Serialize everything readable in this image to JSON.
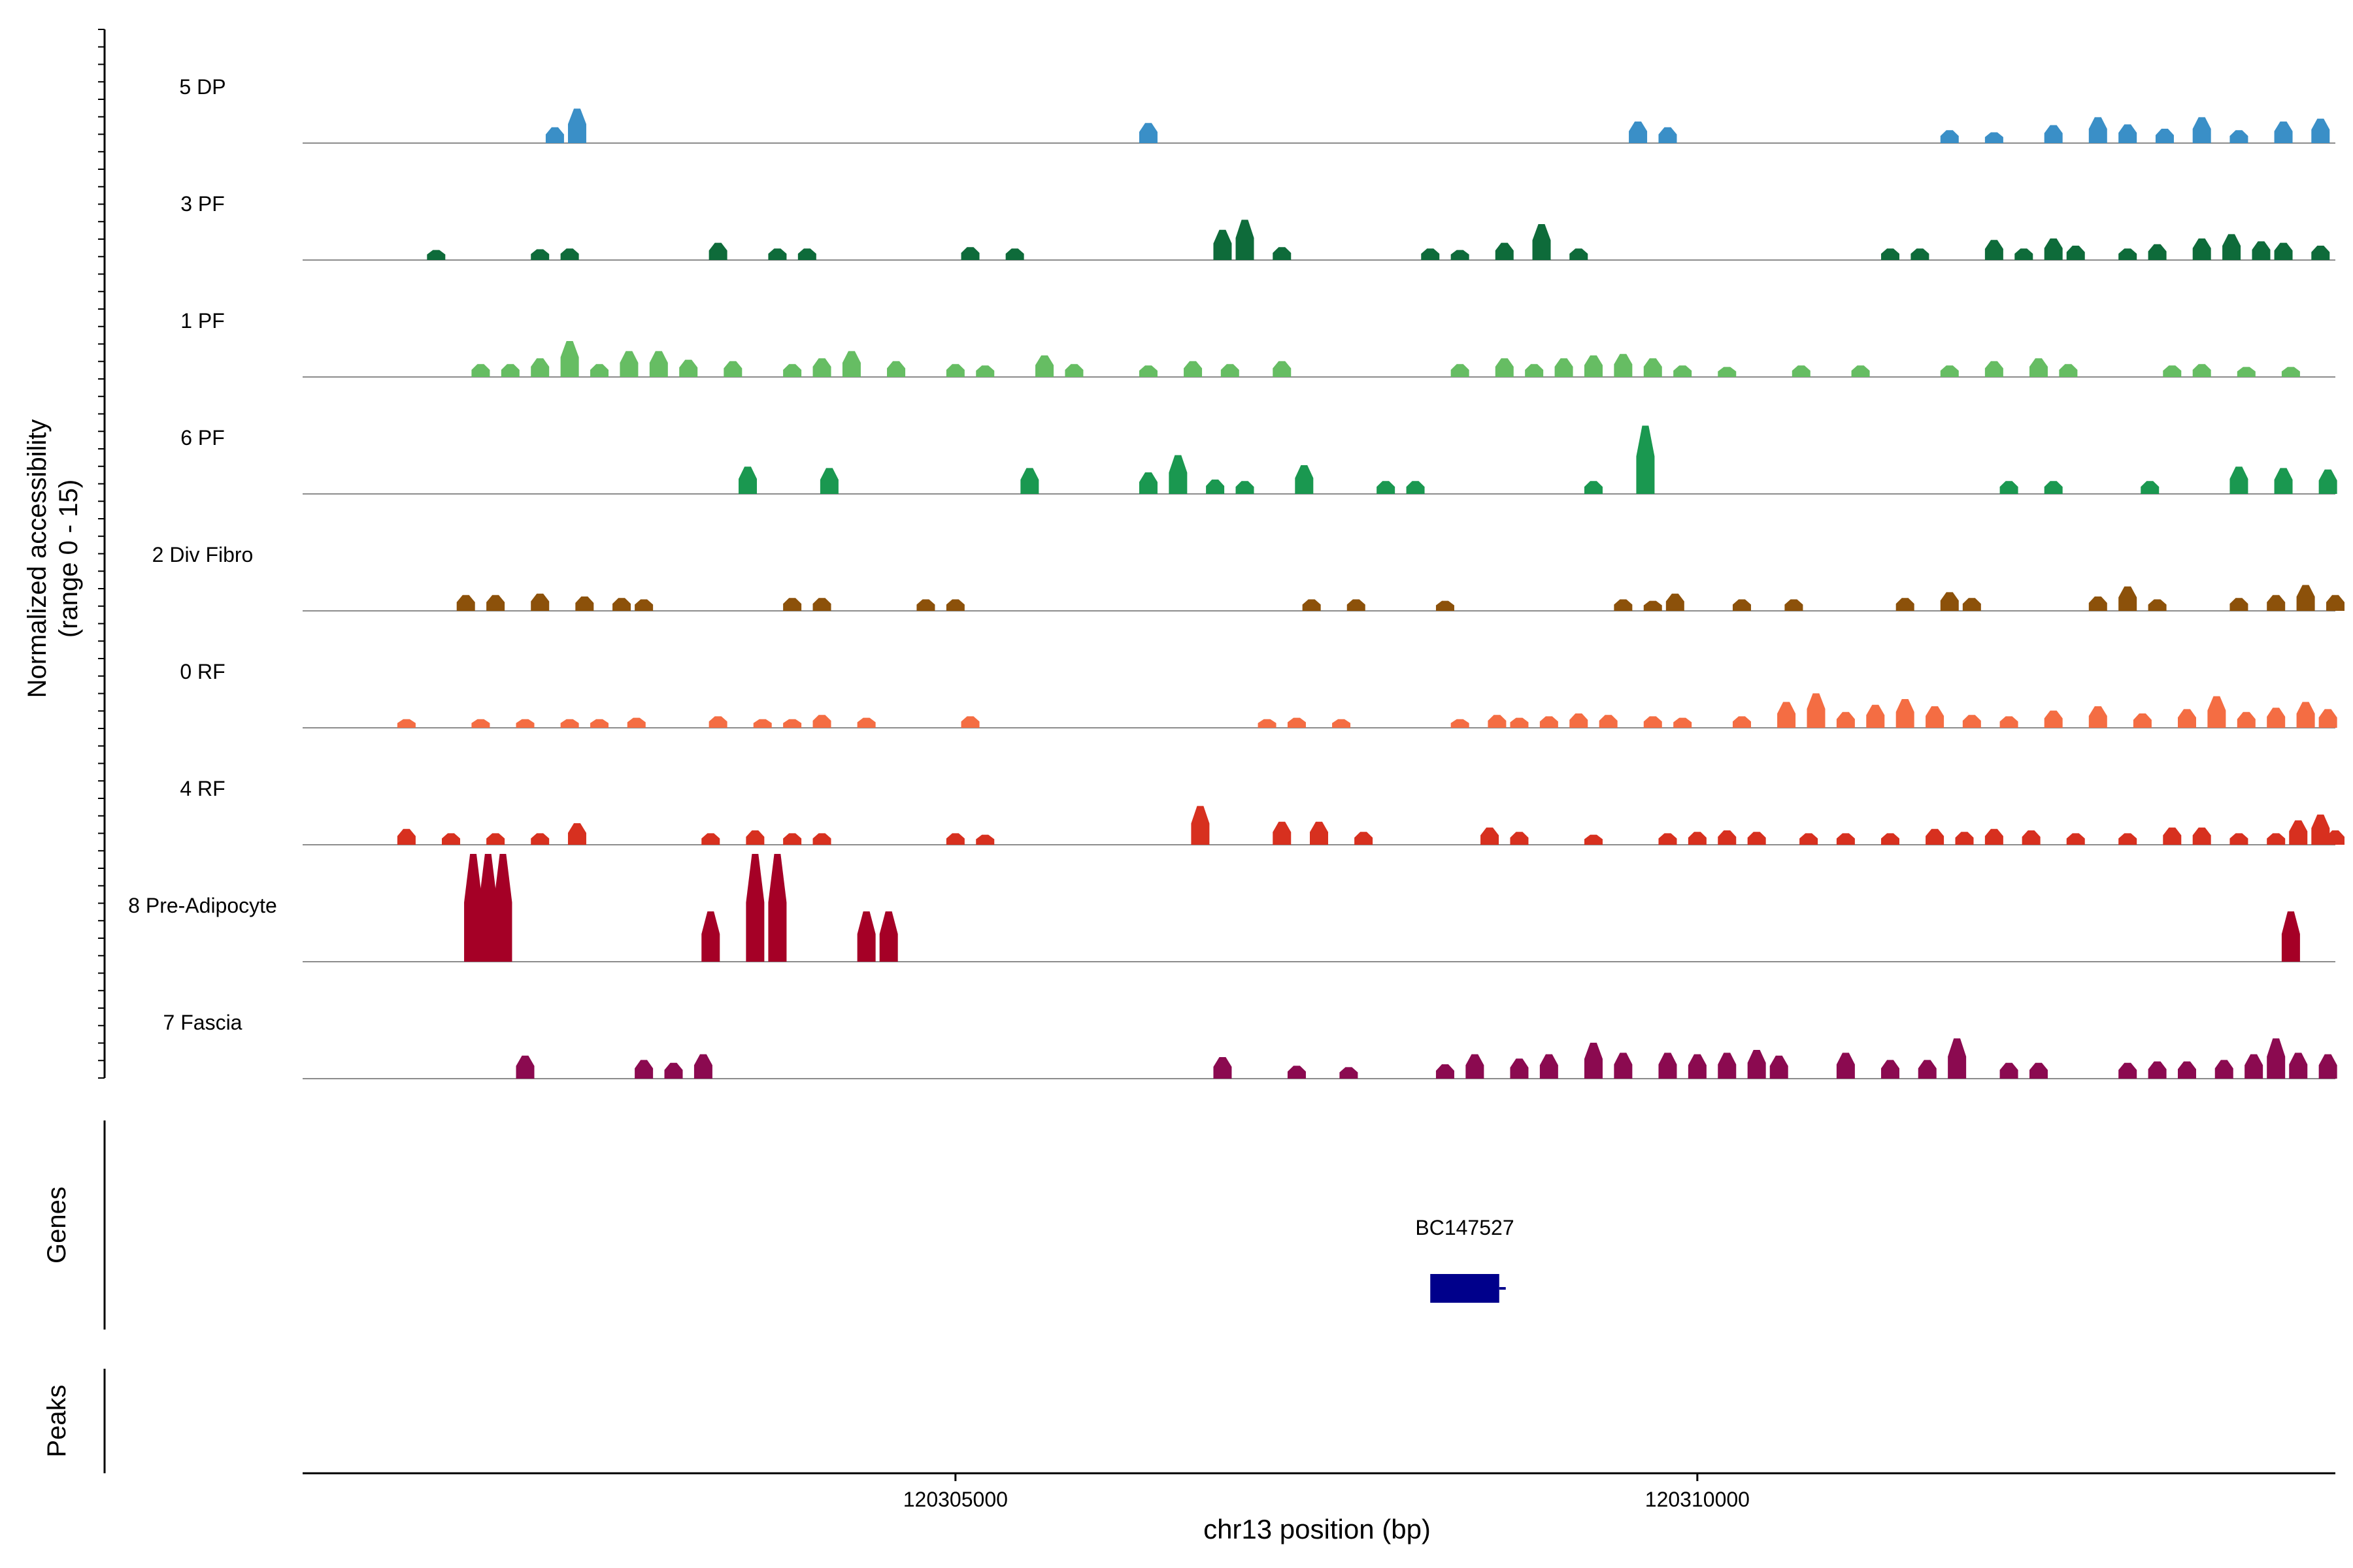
{
  "chart_data": {
    "type": "area",
    "ylabel_line1": "Normalized accessibility",
    "ylabel_line2": "(range 0 - 15)",
    "xlabel": "chr13 position (bp)",
    "x_range": [
      120300600,
      120314300
    ],
    "x_ticks": [
      120305000,
      120310000
    ],
    "x_tick_labels": [
      "120305000",
      "120310000"
    ],
    "y_range": [
      0,
      15
    ],
    "tracks": [
      {
        "name": "5 DP",
        "color": "#3a8fc7",
        "peaks": [
          [
            120302300,
            2.2
          ],
          [
            120302450,
            4.8
          ],
          [
            120306300,
            2.8
          ],
          [
            120309600,
            3.0
          ],
          [
            120309800,
            2.2
          ],
          [
            120311700,
            1.8
          ],
          [
            120312000,
            1.5
          ],
          [
            120312400,
            2.5
          ],
          [
            120312700,
            3.6
          ],
          [
            120312900,
            2.6
          ],
          [
            120313150,
            2.0
          ],
          [
            120313400,
            3.6
          ],
          [
            120313650,
            1.8
          ],
          [
            120313950,
            3.0
          ],
          [
            120314200,
            3.4
          ]
        ]
      },
      {
        "name": "3 PF",
        "color": "#0e6b3a",
        "peaks": [
          [
            120301500,
            1.4
          ],
          [
            120302200,
            1.5
          ],
          [
            120302400,
            1.6
          ],
          [
            120303400,
            2.4
          ],
          [
            120303800,
            1.6
          ],
          [
            120304000,
            1.6
          ],
          [
            120305100,
            1.8
          ],
          [
            120305400,
            1.6
          ],
          [
            120306800,
            4.2
          ],
          [
            120306950,
            5.6
          ],
          [
            120307200,
            1.8
          ],
          [
            120308200,
            1.6
          ],
          [
            120308400,
            1.4
          ],
          [
            120308700,
            2.4
          ],
          [
            120308950,
            5.0
          ],
          [
            120309200,
            1.6
          ],
          [
            120311300,
            1.6
          ],
          [
            120311500,
            1.6
          ],
          [
            120312000,
            2.8
          ],
          [
            120312200,
            1.6
          ],
          [
            120312400,
            3.0
          ],
          [
            120312550,
            2.0
          ],
          [
            120312900,
            1.6
          ],
          [
            120313100,
            2.2
          ],
          [
            120313400,
            3.0
          ],
          [
            120313600,
            3.6
          ],
          [
            120313800,
            2.6
          ],
          [
            120313950,
            2.4
          ],
          [
            120314200,
            2.0
          ]
        ]
      },
      {
        "name": "1 PF",
        "color": "#66bd63",
        "peaks": [
          [
            120301800,
            1.8
          ],
          [
            120302000,
            1.8
          ],
          [
            120302200,
            2.6
          ],
          [
            120302400,
            5.0
          ],
          [
            120302600,
            1.8
          ],
          [
            120302800,
            3.6
          ],
          [
            120303000,
            3.6
          ],
          [
            120303200,
            2.4
          ],
          [
            120303500,
            2.2
          ],
          [
            120303900,
            1.8
          ],
          [
            120304100,
            2.6
          ],
          [
            120304300,
            3.6
          ],
          [
            120304600,
            2.2
          ],
          [
            120305000,
            1.8
          ],
          [
            120305200,
            1.6
          ],
          [
            120305600,
            3.0
          ],
          [
            120305800,
            1.8
          ],
          [
            120306300,
            1.6
          ],
          [
            120306600,
            2.2
          ],
          [
            120306850,
            1.8
          ],
          [
            120307200,
            2.2
          ],
          [
            120308400,
            1.8
          ],
          [
            120308700,
            2.6
          ],
          [
            120308900,
            1.8
          ],
          [
            120309100,
            2.6
          ],
          [
            120309300,
            3.0
          ],
          [
            120309500,
            3.2
          ],
          [
            120309700,
            2.6
          ],
          [
            120309900,
            1.6
          ],
          [
            120310200,
            1.4
          ],
          [
            120310700,
            1.6
          ],
          [
            120311100,
            1.6
          ],
          [
            120311700,
            1.6
          ],
          [
            120312000,
            2.2
          ],
          [
            120312300,
            2.6
          ],
          [
            120312500,
            1.8
          ],
          [
            120313200,
            1.6
          ],
          [
            120313400,
            1.8
          ],
          [
            120313700,
            1.4
          ],
          [
            120314000,
            1.4
          ]
        ]
      },
      {
        "name": "6 PF",
        "color": "#1a9850",
        "peaks": [
          [
            120303600,
            3.8
          ],
          [
            120304150,
            3.6
          ],
          [
            120305500,
            3.6
          ],
          [
            120306300,
            3.0
          ],
          [
            120306500,
            5.4
          ],
          [
            120306750,
            2.0
          ],
          [
            120306950,
            1.8
          ],
          [
            120307350,
            4.0
          ],
          [
            120307900,
            1.8
          ],
          [
            120308100,
            1.8
          ],
          [
            120309300,
            1.8
          ],
          [
            120309650,
            9.5
          ],
          [
            120312100,
            1.8
          ],
          [
            120312400,
            1.8
          ],
          [
            120313050,
            1.8
          ],
          [
            120313650,
            3.8
          ],
          [
            120313950,
            3.6
          ],
          [
            120314250,
            3.4
          ]
        ]
      },
      {
        "name": "2 Div Fibro",
        "color": "#8c510a",
        "peaks": [
          [
            120301700,
            2.2
          ],
          [
            120301900,
            2.2
          ],
          [
            120302200,
            2.4
          ],
          [
            120302500,
            2.0
          ],
          [
            120302750,
            1.8
          ],
          [
            120302900,
            1.6
          ],
          [
            120303900,
            1.8
          ],
          [
            120304100,
            1.8
          ],
          [
            120304800,
            1.6
          ],
          [
            120305000,
            1.6
          ],
          [
            120307400,
            1.6
          ],
          [
            120307700,
            1.6
          ],
          [
            120308300,
            1.4
          ],
          [
            120309500,
            1.6
          ],
          [
            120309700,
            1.4
          ],
          [
            120309850,
            2.4
          ],
          [
            120310300,
            1.6
          ],
          [
            120310650,
            1.6
          ],
          [
            120311400,
            1.8
          ],
          [
            120311700,
            2.6
          ],
          [
            120311850,
            1.8
          ],
          [
            120312700,
            2.0
          ],
          [
            120312900,
            3.4
          ],
          [
            120313100,
            1.6
          ],
          [
            120313650,
            1.8
          ],
          [
            120313900,
            2.2
          ],
          [
            120314100,
            3.6
          ],
          [
            120314300,
            2.2
          ]
        ]
      },
      {
        "name": "0 RF",
        "color": "#f46d43",
        "peaks": [
          [
            120301300,
            1.2
          ],
          [
            120301800,
            1.2
          ],
          [
            120302100,
            1.2
          ],
          [
            120302400,
            1.2
          ],
          [
            120302600,
            1.2
          ],
          [
            120302850,
            1.4
          ],
          [
            120303400,
            1.6
          ],
          [
            120303700,
            1.2
          ],
          [
            120303900,
            1.2
          ],
          [
            120304100,
            1.8
          ],
          [
            120304400,
            1.4
          ],
          [
            120305100,
            1.6
          ],
          [
            120307100,
            1.2
          ],
          [
            120307300,
            1.4
          ],
          [
            120307600,
            1.2
          ],
          [
            120308400,
            1.2
          ],
          [
            120308650,
            1.8
          ],
          [
            120308800,
            1.4
          ],
          [
            120309000,
            1.6
          ],
          [
            120309200,
            2.0
          ],
          [
            120309400,
            1.8
          ],
          [
            120309700,
            1.6
          ],
          [
            120309900,
            1.4
          ],
          [
            120310300,
            1.6
          ],
          [
            120310600,
            3.6
          ],
          [
            120310800,
            4.8
          ],
          [
            120311000,
            2.2
          ],
          [
            120311200,
            3.2
          ],
          [
            120311400,
            4.0
          ],
          [
            120311600,
            3.0
          ],
          [
            120311850,
            1.8
          ],
          [
            120312100,
            1.6
          ],
          [
            120312400,
            2.4
          ],
          [
            120312700,
            3.0
          ],
          [
            120313000,
            2.0
          ],
          [
            120313300,
            2.6
          ],
          [
            120313500,
            4.4
          ],
          [
            120313700,
            2.2
          ],
          [
            120313900,
            2.8
          ],
          [
            120314100,
            3.6
          ],
          [
            120314250,
            2.6
          ]
        ]
      },
      {
        "name": "4 RF",
        "color": "#d7301f",
        "peaks": [
          [
            120301300,
            2.2
          ],
          [
            120301600,
            1.6
          ],
          [
            120301900,
            1.6
          ],
          [
            120302200,
            1.6
          ],
          [
            120302450,
            3.0
          ],
          [
            120303350,
            1.6
          ],
          [
            120303650,
            2.0
          ],
          [
            120303900,
            1.6
          ],
          [
            120304100,
            1.6
          ],
          [
            120305000,
            1.6
          ],
          [
            120305200,
            1.4
          ],
          [
            120306650,
            5.4
          ],
          [
            120307200,
            3.2
          ],
          [
            120307450,
            3.2
          ],
          [
            120307750,
            1.8
          ],
          [
            120308600,
            2.4
          ],
          [
            120308800,
            1.8
          ],
          [
            120309300,
            1.4
          ],
          [
            120309800,
            1.6
          ],
          [
            120310000,
            1.8
          ],
          [
            120310200,
            2.0
          ],
          [
            120310400,
            1.8
          ],
          [
            120310750,
            1.6
          ],
          [
            120311000,
            1.6
          ],
          [
            120311300,
            1.6
          ],
          [
            120311600,
            2.2
          ],
          [
            120311800,
            1.8
          ],
          [
            120312000,
            2.2
          ],
          [
            120312250,
            2.0
          ],
          [
            120312550,
            1.6
          ],
          [
            120312900,
            1.6
          ],
          [
            120313200,
            2.4
          ],
          [
            120313400,
            2.4
          ],
          [
            120313650,
            1.6
          ],
          [
            120313900,
            1.6
          ],
          [
            120314050,
            3.4
          ],
          [
            120314200,
            4.2
          ],
          [
            120314300,
            2.0
          ]
        ]
      },
      {
        "name": "8 Pre-Adipocyte",
        "color": "#a50026",
        "peaks": [
          [
            120301750,
            15.0
          ],
          [
            120301850,
            15.0
          ],
          [
            120301950,
            15.0
          ],
          [
            120303350,
            7.0
          ],
          [
            120303650,
            15.0
          ],
          [
            120303800,
            15.0
          ],
          [
            120304400,
            7.0
          ],
          [
            120304550,
            7.0
          ],
          [
            120314000,
            7.0
          ]
        ]
      },
      {
        "name": "7 Fascia",
        "color": "#8b0a50",
        "peaks": [
          [
            120302100,
            3.2
          ],
          [
            120302900,
            2.6
          ],
          [
            120303100,
            2.2
          ],
          [
            120303300,
            3.4
          ],
          [
            120306800,
            3.0
          ],
          [
            120307300,
            1.8
          ],
          [
            120307650,
            1.6
          ],
          [
            120308300,
            2.0
          ],
          [
            120308500,
            3.4
          ],
          [
            120308800,
            2.8
          ],
          [
            120309000,
            3.4
          ],
          [
            120309300,
            5.0
          ],
          [
            120309500,
            3.6
          ],
          [
            120309800,
            3.6
          ],
          [
            120310000,
            3.4
          ],
          [
            120310200,
            3.6
          ],
          [
            120310400,
            4.0
          ],
          [
            120310550,
            3.2
          ],
          [
            120311000,
            3.6
          ],
          [
            120311300,
            2.6
          ],
          [
            120311550,
            2.6
          ],
          [
            120311750,
            5.6
          ],
          [
            120312100,
            2.2
          ],
          [
            120312300,
            2.2
          ],
          [
            120312900,
            2.2
          ],
          [
            120313100,
            2.4
          ],
          [
            120313300,
            2.4
          ],
          [
            120313550,
            2.6
          ],
          [
            120313750,
            3.4
          ],
          [
            120313900,
            5.6
          ],
          [
            120314050,
            3.6
          ],
          [
            120314250,
            3.4
          ]
        ]
      }
    ],
    "genes_label": "Genes",
    "peaks_label": "Peaks",
    "gene": {
      "name": "BC147527",
      "start": 120308200,
      "end": 120308700,
      "color": "#00008b"
    }
  }
}
